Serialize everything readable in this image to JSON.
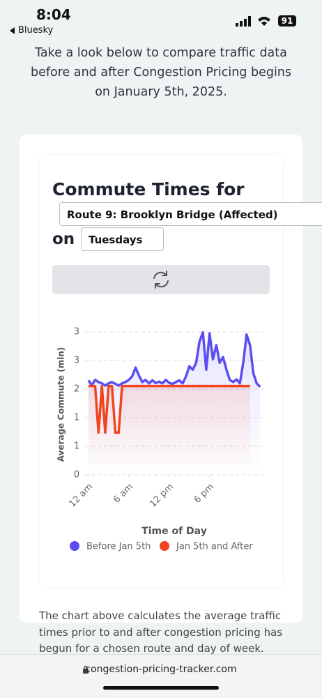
{
  "status_bar": {
    "time": "8:04",
    "back": "Bluesky",
    "battery": "91"
  },
  "intro": "Take a look below to compare traffic data before and after Congestion Pricing begins on January 5th, 2025.",
  "controls": {
    "heading": "Commute Times for",
    "route": "Route 9: Brooklyn Bridge (Affected)",
    "on": "on",
    "day": "Tuesdays"
  },
  "chart_data": {
    "type": "line",
    "ylabel": "Average Commute (min)",
    "xlabel": "Time of Day",
    "xlim": [
      -0.5,
      26
    ],
    "ylim": [
      0,
      3.25
    ],
    "xticks": [
      {
        "value": 0,
        "label": "12 am"
      },
      {
        "value": 6,
        "label": "6 am"
      },
      {
        "value": 12,
        "label": "12 pm"
      },
      {
        "value": 18,
        "label": "6 pm"
      }
    ],
    "yticks": [
      0,
      {
        "value": 0.65,
        "label": "1"
      },
      {
        "value": 1.3,
        "label": "1"
      },
      {
        "value": 1.95,
        "label": "2"
      },
      {
        "value": 2.6,
        "label": "3"
      },
      {
        "value": 3.25,
        "label": "3"
      }
    ],
    "grid": true,
    "series": [
      {
        "name": "Before Jan 5th",
        "color": "#5b4ff0",
        "x": [
          0,
          0.5,
          1,
          1.5,
          2,
          2.5,
          3,
          3.5,
          4,
          4.5,
          5,
          5.5,
          6,
          6.5,
          7,
          7.5,
          8,
          8.5,
          9,
          9.5,
          10,
          10.5,
          11,
          11.5,
          12,
          12.5,
          13,
          13.5,
          14,
          14.5,
          15,
          15.5,
          16,
          16.5,
          17,
          17.5,
          18,
          18.5,
          19,
          19.5,
          20,
          20.5,
          21,
          21.5,
          22,
          22.5,
          23,
          23.5,
          24,
          24.5,
          25,
          25.5
        ],
        "values": [
          2.15,
          2.04,
          2.16,
          2.11,
          2.08,
          2.03,
          2.08,
          2.11,
          2.07,
          2.03,
          2.08,
          2.11,
          2.16,
          2.24,
          2.44,
          2.26,
          2.11,
          2.16,
          2.08,
          2.15,
          2.09,
          2.12,
          2.08,
          2.16,
          2.09,
          2.07,
          2.11,
          2.15,
          2.08,
          2.24,
          2.47,
          2.39,
          2.55,
          3.03,
          3.24,
          2.39,
          3.22,
          2.63,
          2.95,
          2.55,
          2.68,
          2.39,
          2.16,
          2.11,
          2.17,
          2.08,
          2.55,
          3.19,
          2.95,
          2.31,
          2.08,
          2.0
        ]
      },
      {
        "name": "Jan 5th and After",
        "color": "#f2451d",
        "x": [
          0,
          0.5,
          1,
          1.5,
          2,
          2.5,
          3,
          3.5,
          4,
          4.5,
          5,
          5.5,
          6,
          6.5,
          7,
          7.5,
          8,
          8.5,
          9,
          9.5,
          10,
          10.5,
          11,
          11.5,
          12,
          12.5,
          13,
          13.5,
          14,
          14.5,
          15,
          15.5,
          16,
          16.5,
          17,
          17.5,
          18,
          18.5,
          19,
          19.5,
          20,
          20.5,
          21,
          21.5,
          22,
          22.5,
          23,
          23.5,
          24
        ],
        "values": [
          2.02,
          2.02,
          2.02,
          0.96,
          2.02,
          0.96,
          2.02,
          2.02,
          0.96,
          0.96,
          2.02,
          2.02,
          2.02,
          2.02,
          2.02,
          2.02,
          2.02,
          2.02,
          2.02,
          2.02,
          2.02,
          2.02,
          2.02,
          2.02,
          2.02,
          2.02,
          2.02,
          2.02,
          2.02,
          2.02,
          2.02,
          2.02,
          2.02,
          2.02,
          2.02,
          2.02,
          2.02,
          2.02,
          2.02,
          2.02,
          2.02,
          2.02,
          2.02,
          2.02,
          2.02,
          2.02,
          2.02,
          2.02,
          2.02
        ]
      }
    ]
  },
  "description": "The chart above calculates the average traffic times prior to and after congestion pricing has begun for a chosen route and day of week.",
  "url": "congestion-pricing-tracker.com"
}
